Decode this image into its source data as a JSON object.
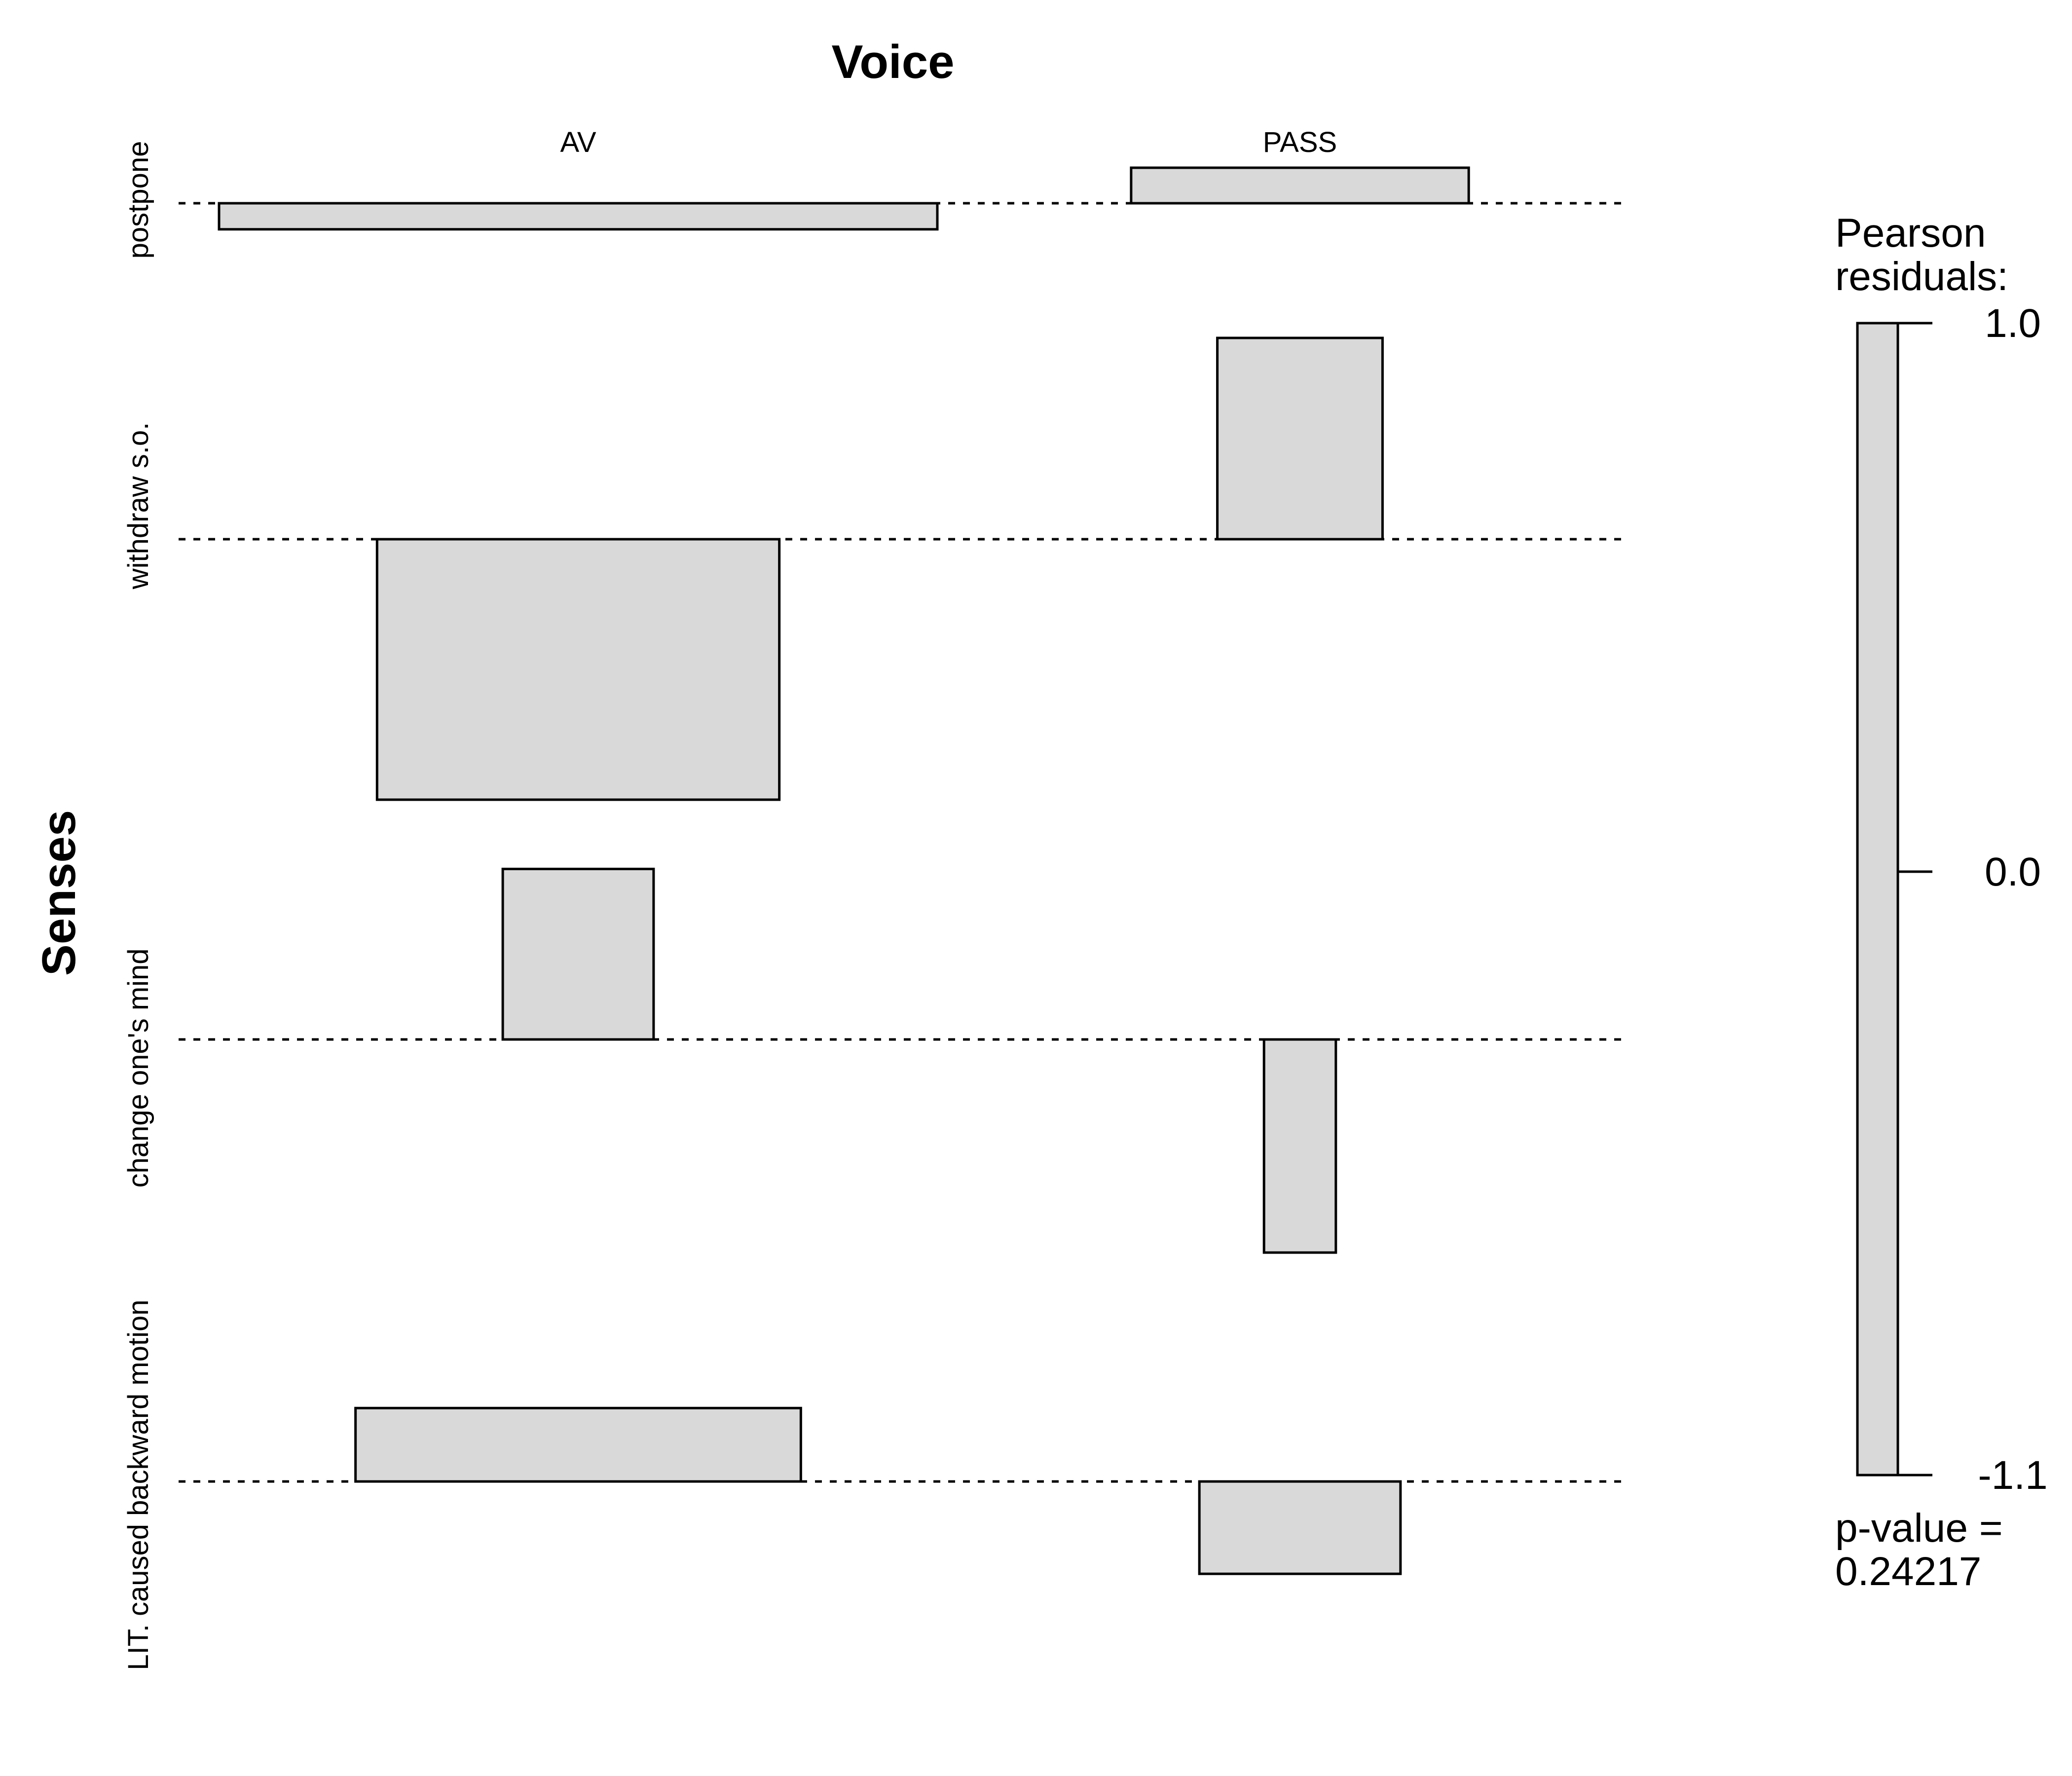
{
  "chart_data": {
    "type": "association",
    "title": "Voice",
    "xlabel": "Voice",
    "ylabel": "Senses",
    "columns": [
      "AV",
      "PASS"
    ],
    "rows": [
      "postpone",
      "withdraw s.o.",
      "change one's mind",
      "LIT. caused backward motion"
    ],
    "residuals": [
      [
        -0.11,
        0.15
      ],
      [
        -1.1,
        0.85
      ],
      [
        0.72,
        -0.9
      ],
      [
        0.31,
        -0.39
      ]
    ],
    "expected_relative": [
      [
        1.0,
        0.47
      ],
      [
        0.56,
        0.23
      ],
      [
        0.21,
        0.1
      ],
      [
        0.62,
        0.28
      ]
    ],
    "baseline_style": "dotted",
    "fill_color": "#d9d9d9",
    "stroke_color": "#000000",
    "legend": {
      "title": "Pearson\nresiduals:",
      "title_lines": [
        "Pearson",
        "residuals:"
      ],
      "max": 1.0,
      "mid": 0.0,
      "min": -1.1,
      "tick_labels": [
        "1.0",
        "0.0",
        "-1.1"
      ],
      "p_value_lines": [
        "p-value =",
        "0.24217"
      ]
    }
  }
}
